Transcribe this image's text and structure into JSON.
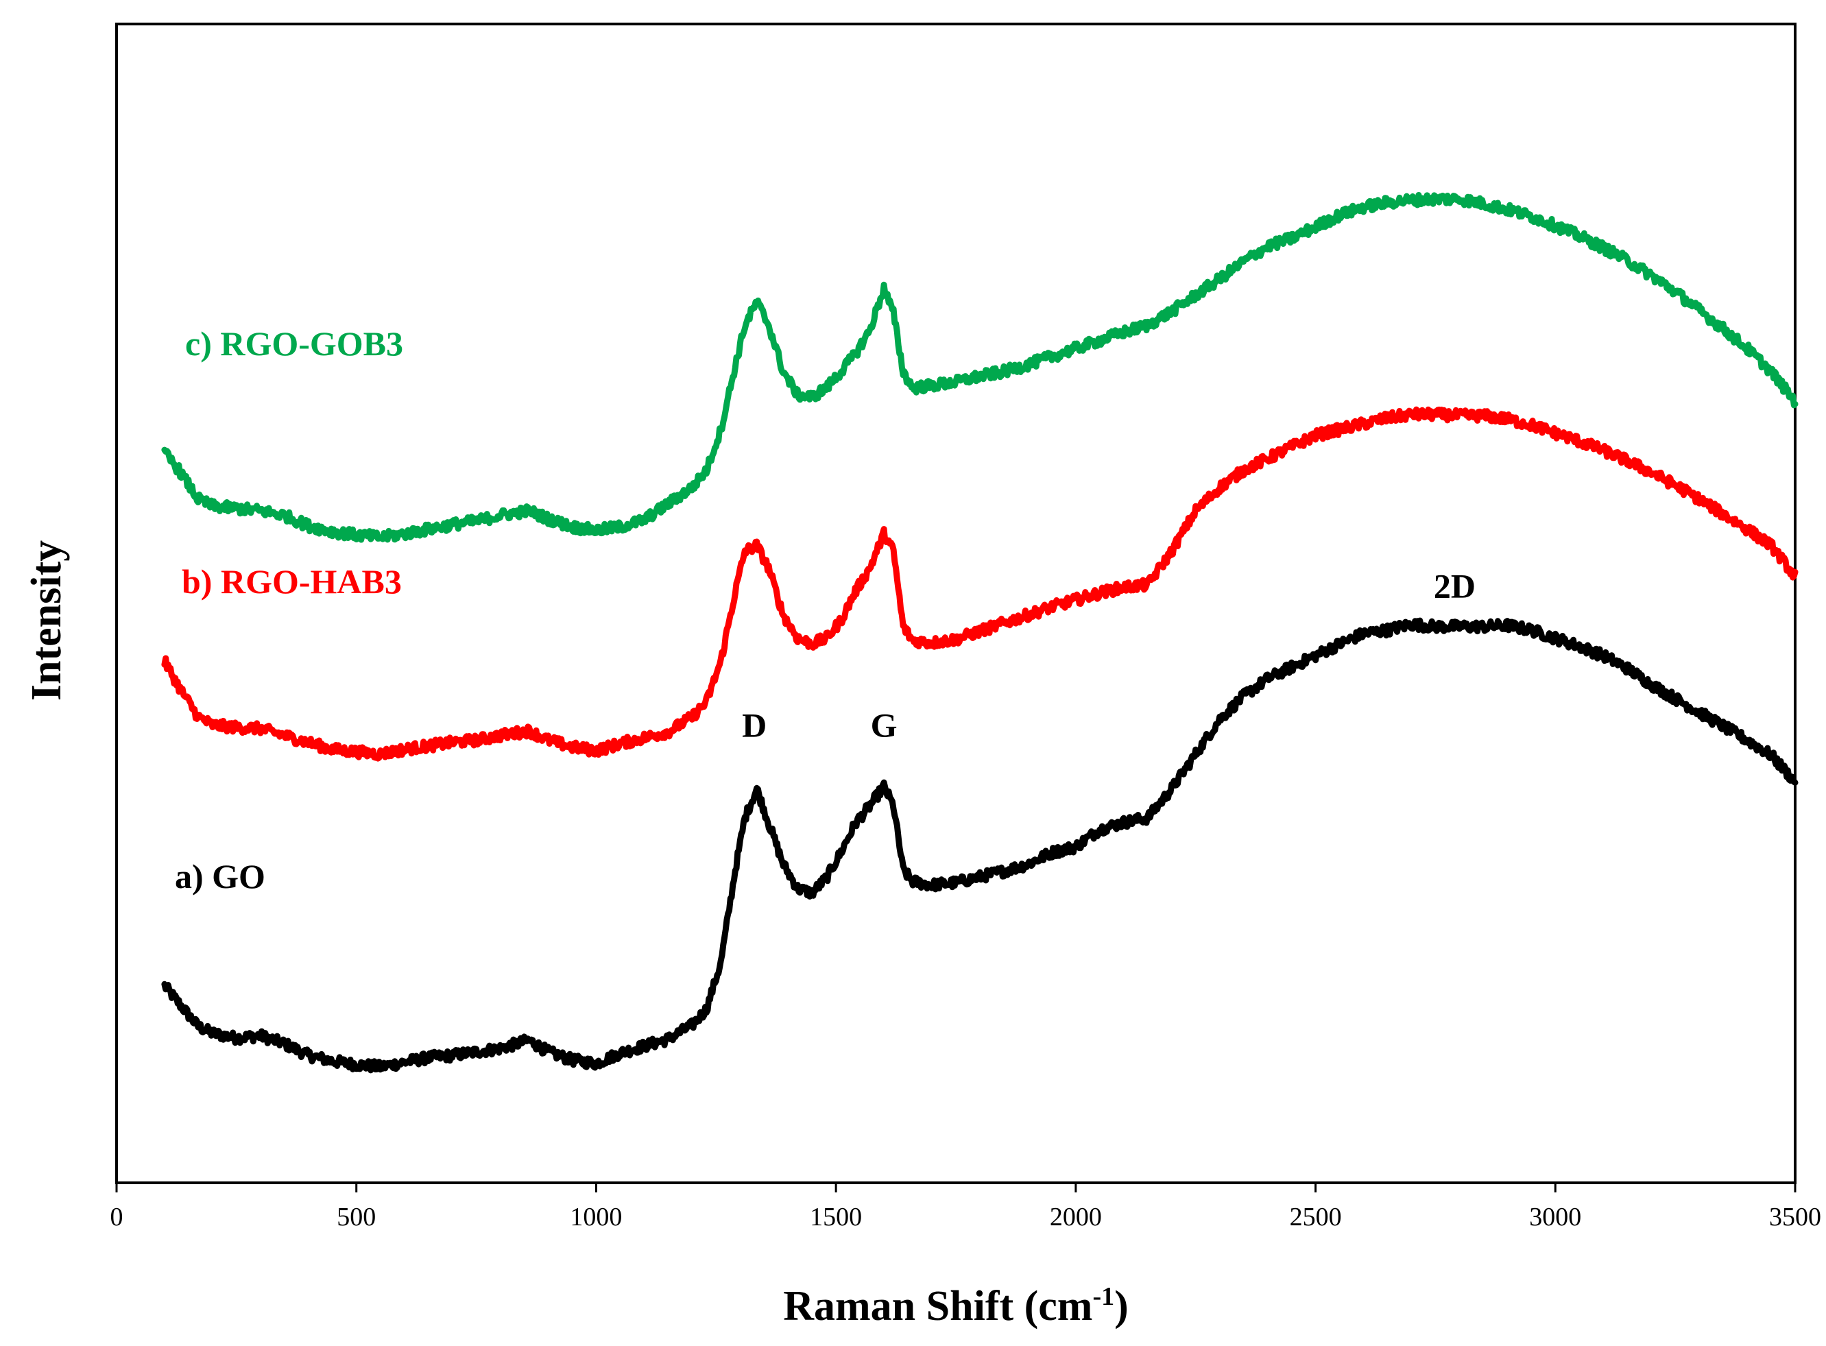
{
  "chart_data": {
    "type": "line",
    "title": "",
    "xlabel": "Raman Shift (cm",
    "xlabel_superscript": "-1",
    "xlabel_suffix": ")",
    "ylabel": "Intensity",
    "xlim": [
      0,
      3500
    ],
    "ylim": [
      0,
      100
    ],
    "xticks": [
      0,
      500,
      1000,
      1500,
      2000,
      2500,
      3000,
      3500
    ],
    "ytick_labels_shown": false,
    "grid": false,
    "legend": "inline-labels-left",
    "series": [
      {
        "name": "a) GO",
        "color": "#000000",
        "x": [
          100,
          130,
          170,
          200,
          250,
          300,
          350,
          400,
          450,
          500,
          550,
          600,
          650,
          700,
          750,
          800,
          860,
          900,
          950,
          1000,
          1050,
          1100,
          1150,
          1200,
          1230,
          1260,
          1290,
          1310,
          1335,
          1360,
          1390,
          1420,
          1450,
          1480,
          1510,
          1540,
          1570,
          1600,
          1620,
          1640,
          1660,
          1700,
          1750,
          1800,
          1850,
          1900,
          1950,
          2000,
          2050,
          2100,
          2150,
          2200,
          2250,
          2300,
          2350,
          2400,
          2450,
          2500,
          2550,
          2600,
          2650,
          2700,
          2750,
          2800,
          2850,
          2900,
          2950,
          3000,
          3050,
          3100,
          3150,
          3200,
          3250,
          3300,
          3350,
          3400,
          3450,
          3500
        ],
        "values": [
          17.0,
          15.5,
          13.5,
          12.9,
          12.5,
          12.7,
          12.0,
          11.0,
          10.5,
          10.2,
          10.0,
          10.4,
          10.8,
          11.0,
          11.3,
          11.6,
          12.3,
          11.3,
          10.6,
          10.3,
          11.2,
          11.8,
          12.4,
          13.6,
          15.0,
          19.0,
          27.0,
          31.5,
          34.0,
          31.0,
          27.5,
          25.4,
          25.0,
          26.3,
          28.5,
          31.0,
          32.5,
          34.2,
          32.5,
          27.0,
          26.0,
          25.7,
          25.9,
          26.4,
          26.9,
          27.5,
          28.5,
          29.0,
          30.5,
          31.1,
          31.5,
          34.0,
          37.0,
          40.0,
          42.0,
          43.5,
          44.5,
          45.5,
          46.5,
          47.4,
          47.7,
          48.2,
          48.0,
          48.0,
          48.0,
          48.1,
          47.7,
          47.0,
          46.3,
          45.5,
          44.4,
          43.0,
          41.8,
          40.6,
          39.4,
          38.2,
          36.9,
          34.6
        ]
      },
      {
        "name": "b) RGO-HAB3",
        "color": "#ff0000",
        "x": [
          100,
          130,
          170,
          200,
          250,
          300,
          350,
          400,
          450,
          500,
          550,
          600,
          650,
          700,
          750,
          800,
          860,
          900,
          950,
          1000,
          1050,
          1100,
          1150,
          1200,
          1230,
          1260,
          1290,
          1310,
          1335,
          1360,
          1390,
          1420,
          1450,
          1480,
          1510,
          1540,
          1570,
          1600,
          1620,
          1640,
          1660,
          1700,
          1750,
          1800,
          1850,
          1900,
          1950,
          2000,
          2050,
          2100,
          2150,
          2200,
          2250,
          2300,
          2350,
          2400,
          2450,
          2500,
          2550,
          2600,
          2650,
          2700,
          2750,
          2800,
          2850,
          2900,
          2950,
          3000,
          3050,
          3100,
          3150,
          3200,
          3250,
          3300,
          3350,
          3400,
          3450,
          3500
        ],
        "values": [
          45.0,
          42.8,
          40.2,
          39.5,
          39.3,
          39.2,
          38.6,
          38.0,
          37.4,
          37.2,
          37.0,
          37.4,
          37.7,
          38.0,
          38.2,
          38.6,
          39.0,
          38.2,
          37.6,
          37.3,
          37.9,
          38.4,
          38.9,
          40.2,
          41.5,
          45.0,
          51.0,
          54.5,
          55.0,
          53.0,
          49.0,
          47.0,
          46.5,
          47.0,
          48.5,
          51.0,
          53.0,
          56.0,
          54.5,
          48.0,
          46.8,
          46.6,
          46.9,
          47.6,
          48.3,
          49.0,
          49.7,
          50.3,
          50.9,
          51.4,
          51.6,
          54.5,
          58.0,
          60.0,
          61.5,
          62.5,
          63.5,
          64.5,
          65.0,
          65.5,
          66.0,
          66.3,
          66.3,
          66.2,
          66.2,
          65.9,
          65.4,
          64.7,
          64.0,
          63.2,
          62.3,
          61.3,
          60.2,
          59.0,
          57.7,
          56.4,
          55.0,
          52.3
        ]
      },
      {
        "name": "c) RGO-GOB3",
        "color": "#00a84d",
        "x": [
          100,
          130,
          170,
          200,
          250,
          300,
          350,
          400,
          450,
          500,
          550,
          600,
          650,
          700,
          750,
          800,
          860,
          900,
          950,
          1000,
          1050,
          1100,
          1150,
          1200,
          1230,
          1260,
          1290,
          1310,
          1335,
          1360,
          1390,
          1420,
          1450,
          1480,
          1510,
          1540,
          1570,
          1600,
          1620,
          1640,
          1660,
          1700,
          1750,
          1800,
          1850,
          1900,
          1950,
          2000,
          2050,
          2100,
          2150,
          2200,
          2250,
          2300,
          2350,
          2400,
          2450,
          2500,
          2550,
          2600,
          2650,
          2700,
          2750,
          2800,
          2850,
          2900,
          2950,
          3000,
          3050,
          3100,
          3150,
          3200,
          3250,
          3300,
          3350,
          3400,
          3450,
          3500
        ],
        "values": [
          63.0,
          61.5,
          59.0,
          58.4,
          58.2,
          58.0,
          57.6,
          56.7,
          56.2,
          55.9,
          55.7,
          56.0,
          56.4,
          56.8,
          57.1,
          57.6,
          58.0,
          57.3,
          56.6,
          56.3,
          56.6,
          57.2,
          58.6,
          60.0,
          61.5,
          65.0,
          70.5,
          74.0,
          76.0,
          74.0,
          70.0,
          68.0,
          67.8,
          68.6,
          70.0,
          71.5,
          73.5,
          77.2,
          75.0,
          70.0,
          68.6,
          68.8,
          69.1,
          69.6,
          70.0,
          70.6,
          71.3,
          72.0,
          72.7,
          73.4,
          74.0,
          75.2,
          76.6,
          78.0,
          79.5,
          80.8,
          81.5,
          82.5,
          83.5,
          84.2,
          84.6,
          84.8,
          84.9,
          84.9,
          84.5,
          84.0,
          83.4,
          82.6,
          81.7,
          80.7,
          79.6,
          78.3,
          76.9,
          75.3,
          73.7,
          72.0,
          70.0,
          67.4
        ]
      }
    ],
    "annotations": [
      {
        "text": "D",
        "x": 1330,
        "y": 38.5
      },
      {
        "text": "G",
        "x": 1600,
        "y": 38.5
      },
      {
        "text": "2D",
        "x": 2790,
        "y": 50.5
      }
    ]
  }
}
